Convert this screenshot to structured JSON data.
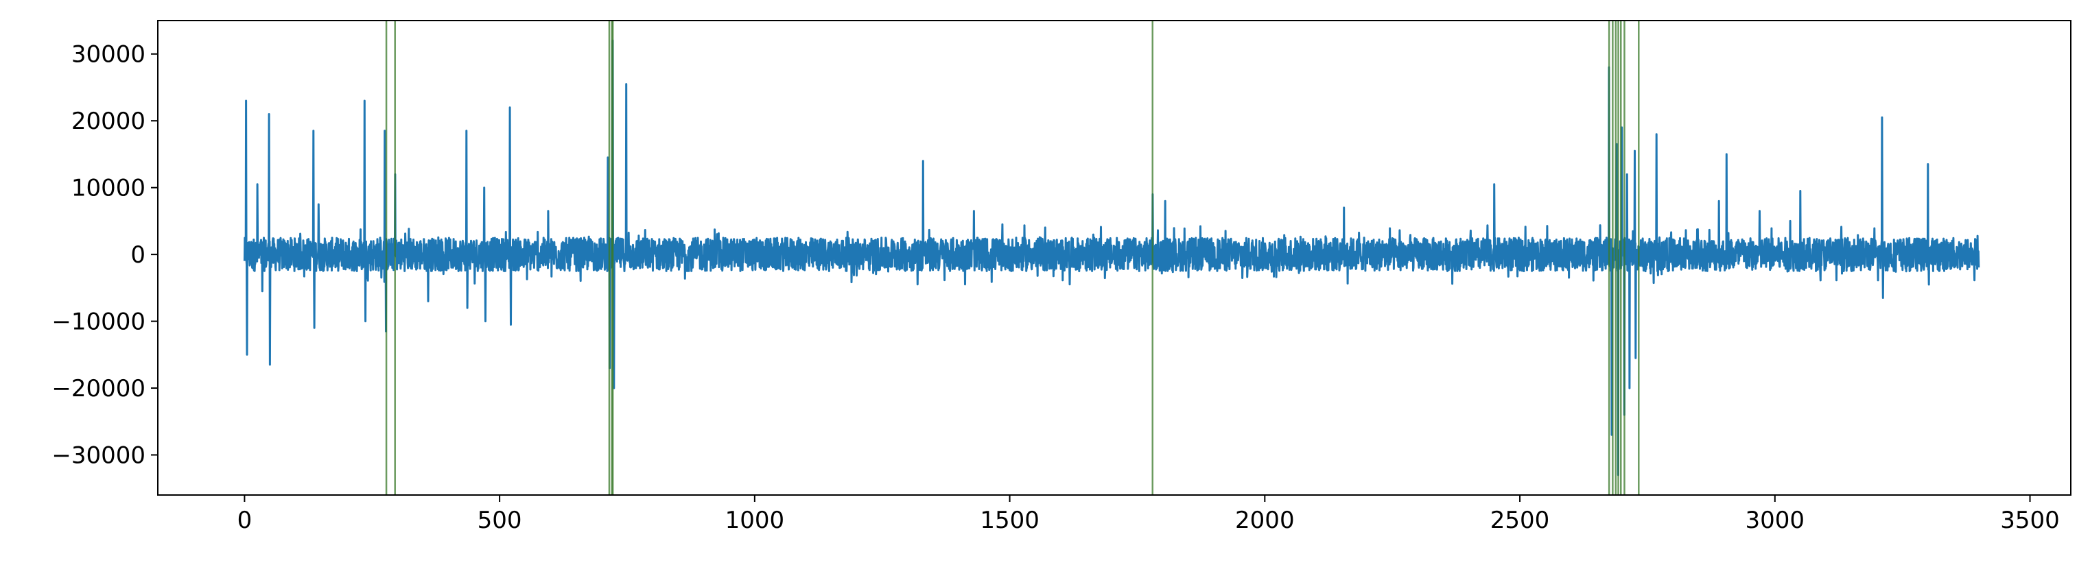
{
  "chart_data": {
    "type": "line",
    "title": "",
    "xlabel": "",
    "ylabel": "",
    "xlim": [
      -170,
      3580
    ],
    "ylim": [
      -36000,
      35000
    ],
    "x_ticks": [
      0,
      500,
      1000,
      1500,
      2000,
      2500,
      3000,
      3500
    ],
    "y_ticks": [
      -30000,
      -20000,
      -10000,
      0,
      10000,
      20000,
      30000
    ],
    "x_tick_labels": [
      "0",
      "500",
      "1000",
      "1500",
      "2000",
      "2500",
      "3000",
      "3500"
    ],
    "y_tick_labels": [
      "−30000",
      "−20000",
      "−10000",
      "0",
      "10000",
      "20000",
      "30000"
    ],
    "grid": false,
    "series": [
      {
        "color": "#1f77b4",
        "x_range": [
          0,
          3400
        ],
        "baseline_band": [
          -2500,
          2500
        ],
        "spikes": [
          {
            "x": 3,
            "y": 23000
          },
          {
            "x": 5,
            "y": -15000
          },
          {
            "x": 25,
            "y": 10500
          },
          {
            "x": 35,
            "y": -5500
          },
          {
            "x": 48,
            "y": 21000
          },
          {
            "x": 50,
            "y": -16500
          },
          {
            "x": 135,
            "y": 18500
          },
          {
            "x": 137,
            "y": -11000
          },
          {
            "x": 145,
            "y": 7500
          },
          {
            "x": 235,
            "y": 23000
          },
          {
            "x": 237,
            "y": -10000
          },
          {
            "x": 275,
            "y": 18500
          },
          {
            "x": 277,
            "y": -11500
          },
          {
            "x": 295,
            "y": 12000
          },
          {
            "x": 360,
            "y": -7000
          },
          {
            "x": 435,
            "y": 18500
          },
          {
            "x": 437,
            "y": -8000
          },
          {
            "x": 470,
            "y": 10000
          },
          {
            "x": 472,
            "y": -10000
          },
          {
            "x": 520,
            "y": 22000
          },
          {
            "x": 522,
            "y": -10500
          },
          {
            "x": 595,
            "y": 6500
          },
          {
            "x": 712,
            "y": 14500
          },
          {
            "x": 716,
            "y": -17000
          },
          {
            "x": 722,
            "y": 32000
          },
          {
            "x": 724,
            "y": -20000
          },
          {
            "x": 748,
            "y": 25500
          },
          {
            "x": 1330,
            "y": 14000
          },
          {
            "x": 1430,
            "y": 6500
          },
          {
            "x": 1780,
            "y": 9000
          },
          {
            "x": 1805,
            "y": 8000
          },
          {
            "x": 2155,
            "y": 7000
          },
          {
            "x": 2450,
            "y": 10500
          },
          {
            "x": 2675,
            "y": 28000
          },
          {
            "x": 2680,
            "y": -27000
          },
          {
            "x": 2690,
            "y": 16500
          },
          {
            "x": 2693,
            "y": -33000
          },
          {
            "x": 2700,
            "y": 19000
          },
          {
            "x": 2705,
            "y": -24000
          },
          {
            "x": 2710,
            "y": 12000
          },
          {
            "x": 2715,
            "y": -20000
          },
          {
            "x": 2725,
            "y": 15500
          },
          {
            "x": 2727,
            "y": -15500
          },
          {
            "x": 2768,
            "y": 18000
          },
          {
            "x": 2890,
            "y": 8000
          },
          {
            "x": 2905,
            "y": 15000
          },
          {
            "x": 2970,
            "y": 6500
          },
          {
            "x": 3030,
            "y": 5000
          },
          {
            "x": 3050,
            "y": 9500
          },
          {
            "x": 3210,
            "y": 20500
          },
          {
            "x": 3212,
            "y": -6500
          },
          {
            "x": 3300,
            "y": 13500
          },
          {
            "x": 3302,
            "y": -4500
          }
        ]
      }
    ],
    "vertical_lines": {
      "color": "#3a7a2a",
      "x": [
        278,
        295,
        715,
        720,
        722,
        1780,
        2675,
        2682,
        2688,
        2693,
        2698,
        2705,
        2733
      ]
    }
  }
}
